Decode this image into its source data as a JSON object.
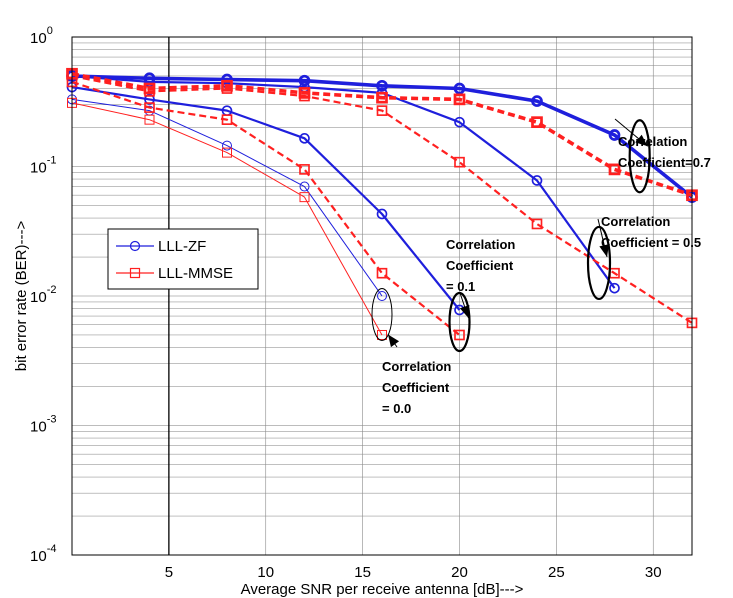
{
  "chart_data": {
    "type": "line",
    "title": "",
    "xlabel": "Average SNR per receive antenna [dB]--->",
    "ylabel": "bit error rate (BER)--->",
    "xlim": [
      0,
      32
    ],
    "ylim": [
      0.0001,
      1
    ],
    "yscale": "log",
    "grid": true,
    "xticks": [
      5,
      10,
      15,
      20,
      25,
      30
    ],
    "xtick_labels": [
      "5",
      "10",
      "15",
      "20",
      "25",
      "30"
    ],
    "yticks": [
      1,
      0.1,
      0.01,
      0.001,
      0.0001
    ],
    "ytick_labels": [
      {
        "base": "10",
        "exp": "0"
      },
      {
        "base": "10",
        "exp": "-1"
      },
      {
        "base": "10",
        "exp": "-2"
      },
      {
        "base": "10",
        "exp": "-3"
      },
      {
        "base": "10",
        "exp": "-4"
      }
    ],
    "legend": {
      "placement": "left",
      "entries": [
        "LLL-ZF",
        "LLL-MMSE"
      ]
    },
    "series": [
      {
        "name": "LLL-ZF",
        "rho": "0.0",
        "color": "#1f1fdc",
        "marker": "circle",
        "style": "solid",
        "width": "thin",
        "x": [
          0,
          4,
          8,
          12,
          16
        ],
        "y": [
          0.33,
          0.27,
          0.145,
          0.07,
          0.01
        ]
      },
      {
        "name": "LLL-MMSE",
        "rho": "0.0",
        "color": "#ff2020",
        "marker": "square",
        "style": "solid",
        "width": "thin",
        "x": [
          0,
          4,
          8,
          12,
          16
        ],
        "y": [
          0.31,
          0.23,
          0.128,
          0.058,
          0.005
        ]
      },
      {
        "name": "LLL-ZF",
        "rho": "0.1",
        "color": "#1f1fdc",
        "marker": "circle",
        "style": "solid",
        "width": "medium",
        "x": [
          0,
          4,
          8,
          12,
          16,
          20
        ],
        "y": [
          0.41,
          0.33,
          0.27,
          0.165,
          0.043,
          0.0078
        ]
      },
      {
        "name": "LLL-MMSE",
        "rho": "0.1",
        "color": "#ff2020",
        "marker": "square",
        "style": "dashed",
        "width": "medium",
        "x": [
          0,
          4,
          8,
          12,
          16,
          20
        ],
        "y": [
          0.45,
          0.285,
          0.23,
          0.095,
          0.015,
          0.005
        ]
      },
      {
        "name": "LLL-ZF",
        "rho": "0.5",
        "color": "#1f1fdc",
        "marker": "circle",
        "style": "solid",
        "width": "medium",
        "x": [
          0,
          4,
          8,
          12,
          16,
          20,
          24,
          28
        ],
        "y": [
          0.5,
          0.45,
          0.44,
          0.41,
          0.37,
          0.22,
          0.078,
          0.0115
        ]
      },
      {
        "name": "LLL-MMSE",
        "rho": "0.5",
        "color": "#ff2020",
        "marker": "square",
        "style": "dashed",
        "width": "medium",
        "x": [
          0,
          4,
          8,
          12,
          16,
          20,
          24,
          28,
          32
        ],
        "y": [
          0.5,
          0.38,
          0.4,
          0.35,
          0.27,
          0.108,
          0.036,
          0.015,
          0.0062
        ]
      },
      {
        "name": "LLL-ZF",
        "rho": "0.7",
        "color": "#1f1fdc",
        "marker": "circle",
        "style": "solid",
        "width": "thick",
        "x": [
          0,
          4,
          8,
          12,
          16,
          20,
          24,
          28,
          32
        ],
        "y": [
          0.5,
          0.48,
          0.47,
          0.46,
          0.42,
          0.4,
          0.32,
          0.175,
          0.058
        ]
      },
      {
        "name": "LLL-MMSE",
        "rho": "0.7",
        "color": "#ff2020",
        "marker": "square",
        "style": "dashed",
        "width": "thick",
        "x": [
          0,
          4,
          8,
          12,
          16,
          20,
          24,
          28,
          32
        ],
        "y": [
          0.52,
          0.4,
          0.42,
          0.37,
          0.34,
          0.33,
          0.22,
          0.095,
          0.06
        ]
      }
    ],
    "annotations": [
      {
        "id": "rho00",
        "lines": [
          "Correlation",
          "Coefficient",
          "= 0.0"
        ]
      },
      {
        "id": "rho01",
        "lines": [
          "Correlation",
          "Coefficient",
          "= 0.1"
        ]
      },
      {
        "id": "rho05",
        "lines": [
          "Correlation",
          "Coefficient = 0.5"
        ]
      },
      {
        "id": "rho07",
        "lines": [
          "Correlation",
          "Coefficient=0.7"
        ]
      }
    ]
  }
}
